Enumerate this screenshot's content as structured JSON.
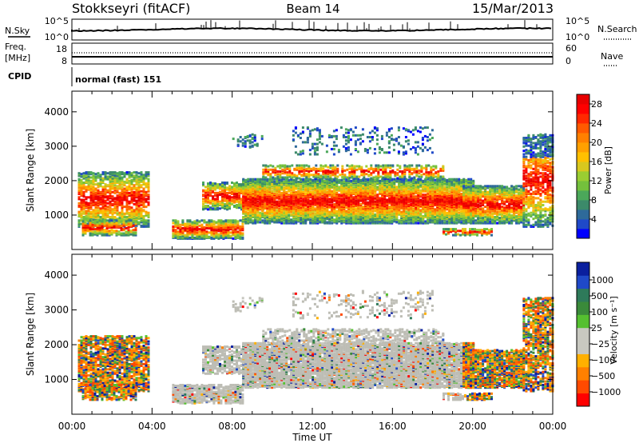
{
  "header": {
    "station": "Stokkseyri (fitACF)",
    "beam": "Beam 14",
    "date": "15/Mar/2013"
  },
  "status_panels": {
    "nsky_label": "N.Sky",
    "nsearch_label": "N.Search",
    "noise_ticks": [
      "10^5",
      "10^0"
    ],
    "freq_label_1": "Freq.",
    "freq_label_2": "[MHz]",
    "freq_ticks": [
      "18",
      "8"
    ],
    "nave_label": "Nave",
    "nave_ticks": [
      "60",
      "0"
    ],
    "cpid_label": "CPID",
    "cpid_value": "normal (fast) 151"
  },
  "chart_data": [
    {
      "type": "heatmap",
      "name": "power",
      "ylabel": "Slant Range [km]",
      "xlabel": "",
      "y_ticks": [
        "1000",
        "2000",
        "3000",
        "4000"
      ],
      "x_ticks": [
        "00:00",
        "04:00",
        "08:00",
        "12:00",
        "16:00",
        "20:00",
        "00:00"
      ],
      "ylim": [
        0,
        4600
      ],
      "xlim_hours": [
        0,
        24
      ],
      "colorbar": {
        "label": "Power [dB]",
        "ticks": [
          "4",
          "8",
          "12",
          "16",
          "20",
          "24",
          "28"
        ],
        "range": [
          0,
          30
        ],
        "colors": [
          "#0000ff",
          "#1f49c8",
          "#2e6a9a",
          "#3c8a6a",
          "#4ba85a",
          "#74c03c",
          "#9acd32",
          "#d8c81e",
          "#ffc000",
          "#ffa000",
          "#ff8000",
          "#ff5a00",
          "#ff2800",
          "#ff0000",
          "#e80000"
        ]
      }
    },
    {
      "type": "heatmap",
      "name": "velocity",
      "ylabel": "Slant Range [km]",
      "xlabel": "Time UT",
      "y_ticks": [
        "1000",
        "2000",
        "3000",
        "4000"
      ],
      "x_ticks": [
        "00:00",
        "04:00",
        "08:00",
        "12:00",
        "16:00",
        "20:00",
        "00:00"
      ],
      "ylim": [
        0,
        4600
      ],
      "xlim_hours": [
        0,
        24
      ],
      "colorbar": {
        "label": "Velocity [m s⁻¹]",
        "ticks": [
          "1000",
          "500",
          "100",
          "25",
          "−25",
          "−100",
          "−500",
          "−1000"
        ],
        "colors": [
          "#0a1f9e",
          "#1f49c8",
          "#2e7a5a",
          "#3a8a3a",
          "#55c030",
          "#c8c8c0",
          "#c8c8c0",
          "#ffb000",
          "#ff8000",
          "#ff4a00",
          "#ff0000"
        ],
        "ground_scatter": "#bdbdb5"
      }
    }
  ]
}
